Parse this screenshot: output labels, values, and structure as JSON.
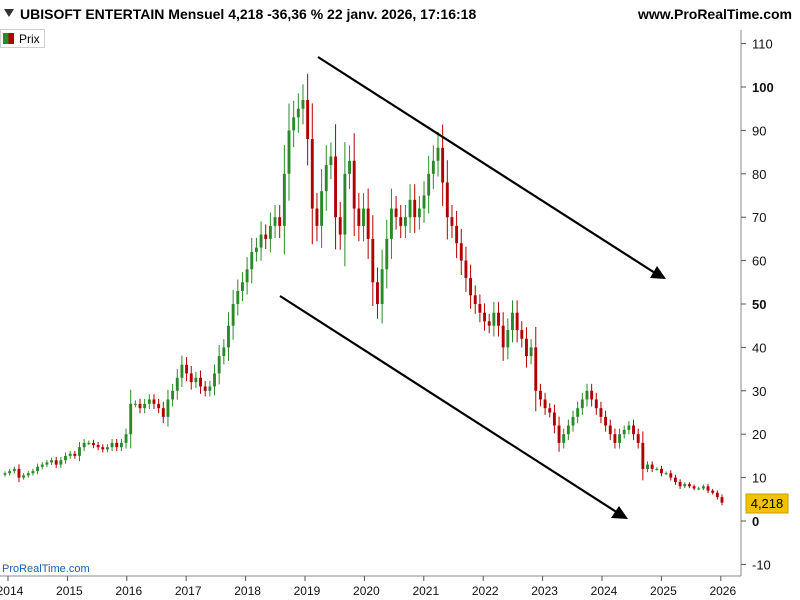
{
  "header": {
    "title": "UBISOFT ENTERTAIN Mensuel 4,218 -36,36 % 22 janv. 2026, 17:16:18",
    "site": "www.ProRealTime.com"
  },
  "legend": {
    "label": "Prix"
  },
  "watermark": "ProRealTime.com",
  "colors": {
    "up": "#2a8a2a",
    "down": "#b00000",
    "price_box": "#f2c200"
  },
  "chart_data": {
    "type": "candlestick",
    "instrument": "UBISOFT ENTERTAIN",
    "period": "Mensuel",
    "last_price_label": "4,218",
    "ylim": [
      -12,
      115
    ],
    "y_ticks": [
      {
        "value": 110,
        "label": "110",
        "bold": false
      },
      {
        "value": 100,
        "label": "100",
        "bold": true
      },
      {
        "value": 90,
        "label": "90",
        "bold": false
      },
      {
        "value": 80,
        "label": "80",
        "bold": false
      },
      {
        "value": 70,
        "label": "70",
        "bold": false
      },
      {
        "value": 60,
        "label": "60",
        "bold": false
      },
      {
        "value": 50,
        "label": "50",
        "bold": true
      },
      {
        "value": 40,
        "label": "40",
        "bold": false
      },
      {
        "value": 30,
        "label": "30",
        "bold": false
      },
      {
        "value": 20,
        "label": "20",
        "bold": false
      },
      {
        "value": 10,
        "label": "10",
        "bold": false
      },
      {
        "value": 0,
        "label": "0",
        "bold": true
      },
      {
        "value": -10,
        "label": "-10",
        "bold": false
      }
    ],
    "x_ticks": [
      "2014",
      "2015",
      "2016",
      "2017",
      "2018",
      "2019",
      "2020",
      "2021",
      "2022",
      "2023",
      "2024",
      "2025",
      "2026"
    ],
    "x_start_year": 2013.95,
    "x_end_year": 2026.02,
    "close_series": [
      11,
      11.5,
      12,
      10,
      10.5,
      11,
      11.5,
      12.5,
      13,
      13.5,
      14,
      13,
      14,
      15,
      15.5,
      15,
      17,
      18,
      18,
      17.5,
      17,
      16.5,
      17,
      18,
      17,
      18,
      20,
      27,
      27,
      26,
      27,
      28,
      27,
      26,
      24,
      28,
      30,
      33,
      36,
      34,
      32,
      33,
      31,
      30,
      31,
      34,
      38,
      40,
      45,
      50,
      53,
      55,
      58,
      62,
      63,
      66,
      65,
      68,
      70,
      68,
      80,
      90,
      93,
      95,
      97,
      88,
      72,
      68,
      76,
      82,
      84,
      70,
      66,
      80,
      83,
      72,
      68,
      72,
      65,
      55,
      50,
      58,
      65,
      72,
      70,
      68,
      70,
      74,
      70,
      72,
      75,
      80,
      83,
      86,
      78,
      70,
      68,
      64,
      60,
      56,
      52,
      50,
      48,
      46,
      45,
      48,
      45,
      40,
      44,
      48,
      44,
      42,
      38,
      40,
      30,
      28,
      26,
      25,
      22,
      18,
      20,
      22,
      24,
      26,
      28,
      30,
      28,
      26,
      24,
      22,
      20,
      18,
      20,
      21,
      22,
      20,
      18,
      12,
      13,
      12,
      12,
      11,
      11,
      10,
      9,
      8,
      8.5,
      8,
      7.5,
      7.5,
      8,
      7,
      6.5,
      5.5,
      4.218
    ]
  }
}
